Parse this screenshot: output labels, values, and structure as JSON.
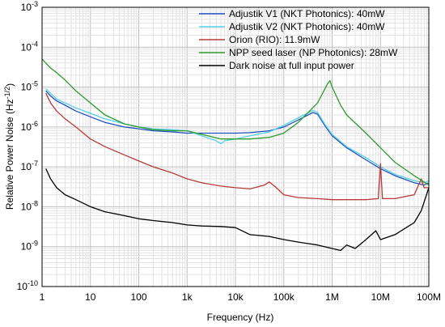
{
  "chart_data": {
    "type": "line",
    "title": "",
    "xlabel": "Frequency (Hz)",
    "ylabel": "Relative Power Noise (Hz",
    "ylabel_sup": "-1/2",
    "ylabel_close": ")",
    "x_scale": "log",
    "y_scale": "log",
    "xlim": [
      1,
      100000000
    ],
    "ylim": [
      1e-10,
      0.001
    ],
    "grid": true,
    "legend_position": "top-right",
    "x_ticks": [
      {
        "value": 1,
        "label": "1"
      },
      {
        "value": 10,
        "label": "10"
      },
      {
        "value": 100,
        "label": "100"
      },
      {
        "value": 1000,
        "label": "1k"
      },
      {
        "value": 10000,
        "label": "10k"
      },
      {
        "value": 100000,
        "label": "100k"
      },
      {
        "value": 1000000,
        "label": "1M"
      },
      {
        "value": 10000000,
        "label": "10M"
      },
      {
        "value": 100000000,
        "label": "100M"
      }
    ],
    "y_ticks": [
      {
        "value": 1e-10,
        "base": "10",
        "exp": "-10"
      },
      {
        "value": 1e-09,
        "base": "10",
        "exp": "-9"
      },
      {
        "value": 1e-08,
        "base": "10",
        "exp": "-8"
      },
      {
        "value": 1e-07,
        "base": "10",
        "exp": "-7"
      },
      {
        "value": 1e-06,
        "base": "10",
        "exp": "-6"
      },
      {
        "value": 1e-05,
        "base": "10",
        "exp": "-5"
      },
      {
        "value": 0.0001,
        "base": "10",
        "exp": "-4"
      },
      {
        "value": 0.001,
        "base": "10",
        "exp": "-3"
      }
    ],
    "series": [
      {
        "name": "Adjustik V1 (NKT Photonics): 40mW",
        "color": "#1f4fbf",
        "x": [
          1.2,
          1.5,
          2,
          3,
          5,
          10,
          20,
          50,
          100,
          200,
          500,
          1000,
          2000,
          5000,
          10000,
          20000,
          50000,
          100000,
          200000,
          400000,
          500000,
          700000,
          1000000,
          2000000,
          5000000,
          10000000,
          20000000,
          50000000,
          80000000,
          100000000
        ],
        "y": [
          8e-06,
          6e-06,
          4.5e-06,
          3.5e-06,
          2.5e-06,
          1.8e-06,
          1.3e-06,
          1e-06,
          9e-07,
          8e-07,
          7.5e-07,
          7e-07,
          7e-07,
          7e-07,
          7e-07,
          7.2e-07,
          8e-07,
          1e-06,
          1.5e-06,
          2.3e-06,
          2.1e-06,
          1.1e-06,
          6e-07,
          3e-07,
          1.5e-07,
          9e-08,
          6e-08,
          4e-08,
          3.5e-08,
          4e-08
        ]
      },
      {
        "name": "Adjustik V2 (NKT Photonics): 40mW",
        "color": "#55cfe8",
        "x": [
          1.2,
          1.5,
          2,
          3,
          5,
          10,
          20,
          50,
          100,
          200,
          500,
          1000,
          2000,
          4000,
          5000,
          6000,
          10000,
          20000,
          50000,
          100000,
          200000,
          400000,
          500000,
          700000,
          1000000,
          2000000,
          5000000,
          10000000,
          20000000,
          50000000,
          80000000,
          100000000
        ],
        "y": [
          9e-06,
          7e-06,
          5e-06,
          4e-06,
          3e-06,
          2.2e-06,
          1.6e-06,
          1.2e-06,
          1e-06,
          9e-07,
          8.5e-07,
          8e-07,
          6e-07,
          4.5e-07,
          3.8e-07,
          4.5e-07,
          5e-07,
          6e-07,
          7.5e-07,
          1.1e-06,
          1.7e-06,
          2.6e-06,
          2.3e-06,
          1.2e-06,
          6.5e-07,
          3.2e-07,
          1.7e-07,
          1e-07,
          6.5e-08,
          4.5e-08,
          4e-08,
          4.5e-08
        ]
      },
      {
        "name": "Orion (RIO): 11.9mW",
        "color": "#b83a3a",
        "x": [
          1.2,
          1.5,
          2,
          3,
          5,
          10,
          20,
          50,
          100,
          200,
          500,
          1000,
          2000,
          5000,
          10000,
          20000,
          40000,
          50000,
          70000,
          100000,
          200000,
          500000,
          1000000,
          2000000,
          5000000,
          9000000,
          10000000,
          11000000,
          20000000,
          50000000,
          70000000,
          80000000,
          100000000
        ],
        "y": [
          7e-06,
          4e-06,
          2.5e-06,
          1.6e-06,
          1e-06,
          5e-07,
          3.2e-07,
          2e-07,
          1.4e-07,
          1e-07,
          7e-08,
          5e-08,
          4e-08,
          3.3e-08,
          3e-08,
          2.8e-08,
          3.5e-08,
          4.2e-08,
          3e-08,
          2e-08,
          1.7e-08,
          1.6e-08,
          1.5e-08,
          1.5e-08,
          1.5e-08,
          1.6e-08,
          1.2e-07,
          1.6e-08,
          1.6e-08,
          2e-08,
          5e-08,
          3e-08,
          3e-08
        ]
      },
      {
        "name": "NPP seed laser (NP Photonics): 28mW",
        "color": "#2e9a2e",
        "x": [
          1,
          1.2,
          1.5,
          2,
          3,
          5,
          10,
          20,
          50,
          100,
          200,
          500,
          1000,
          5000,
          10000,
          20000,
          50000,
          100000,
          200000,
          500000,
          800000,
          900000,
          1000000,
          1500000,
          2000000,
          5000000,
          10000000,
          20000000,
          50000000,
          100000000
        ],
        "y": [
          5e-05,
          4e-05,
          3e-05,
          2.3e-05,
          1.5e-05,
          8e-06,
          4e-06,
          2e-06,
          1.2e-06,
          1e-06,
          8.5e-07,
          8e-07,
          8e-07,
          5e-07,
          5e-07,
          5e-07,
          5.5e-07,
          7e-07,
          1.3e-06,
          4e-06,
          1.2e-05,
          1.45e-05,
          1e-05,
          3.5e-06,
          2e-06,
          7e-07,
          3e-07,
          1.3e-07,
          6e-08,
          3.5e-08
        ]
      },
      {
        "name": "Dark noise at full input power",
        "color": "#000000",
        "x": [
          1.2,
          1.5,
          2,
          3,
          5,
          10,
          20,
          50,
          100,
          200,
          500,
          1000,
          2000,
          5000,
          10000,
          20000,
          50000,
          100000,
          200000,
          500000,
          1000000,
          1500000,
          2000000,
          3000000,
          5000000,
          8000000,
          10000000,
          20000000,
          50000000,
          70000000,
          100000000
        ],
        "y": [
          9e-08,
          5e-08,
          3e-08,
          2e-08,
          1.5e-08,
          1e-08,
          7.5e-09,
          6e-09,
          5e-09,
          4.5e-09,
          4e-09,
          3.5e-09,
          3.3e-09,
          3.2e-09,
          3e-09,
          2e-09,
          1.8e-09,
          1.5e-09,
          1.3e-09,
          1.1e-09,
          9e-10,
          8e-10,
          1.1e-09,
          9e-10,
          1.5e-09,
          2.5e-09,
          1.5e-09,
          2e-09,
          4e-09,
          8e-09,
          3e-08
        ]
      }
    ]
  }
}
